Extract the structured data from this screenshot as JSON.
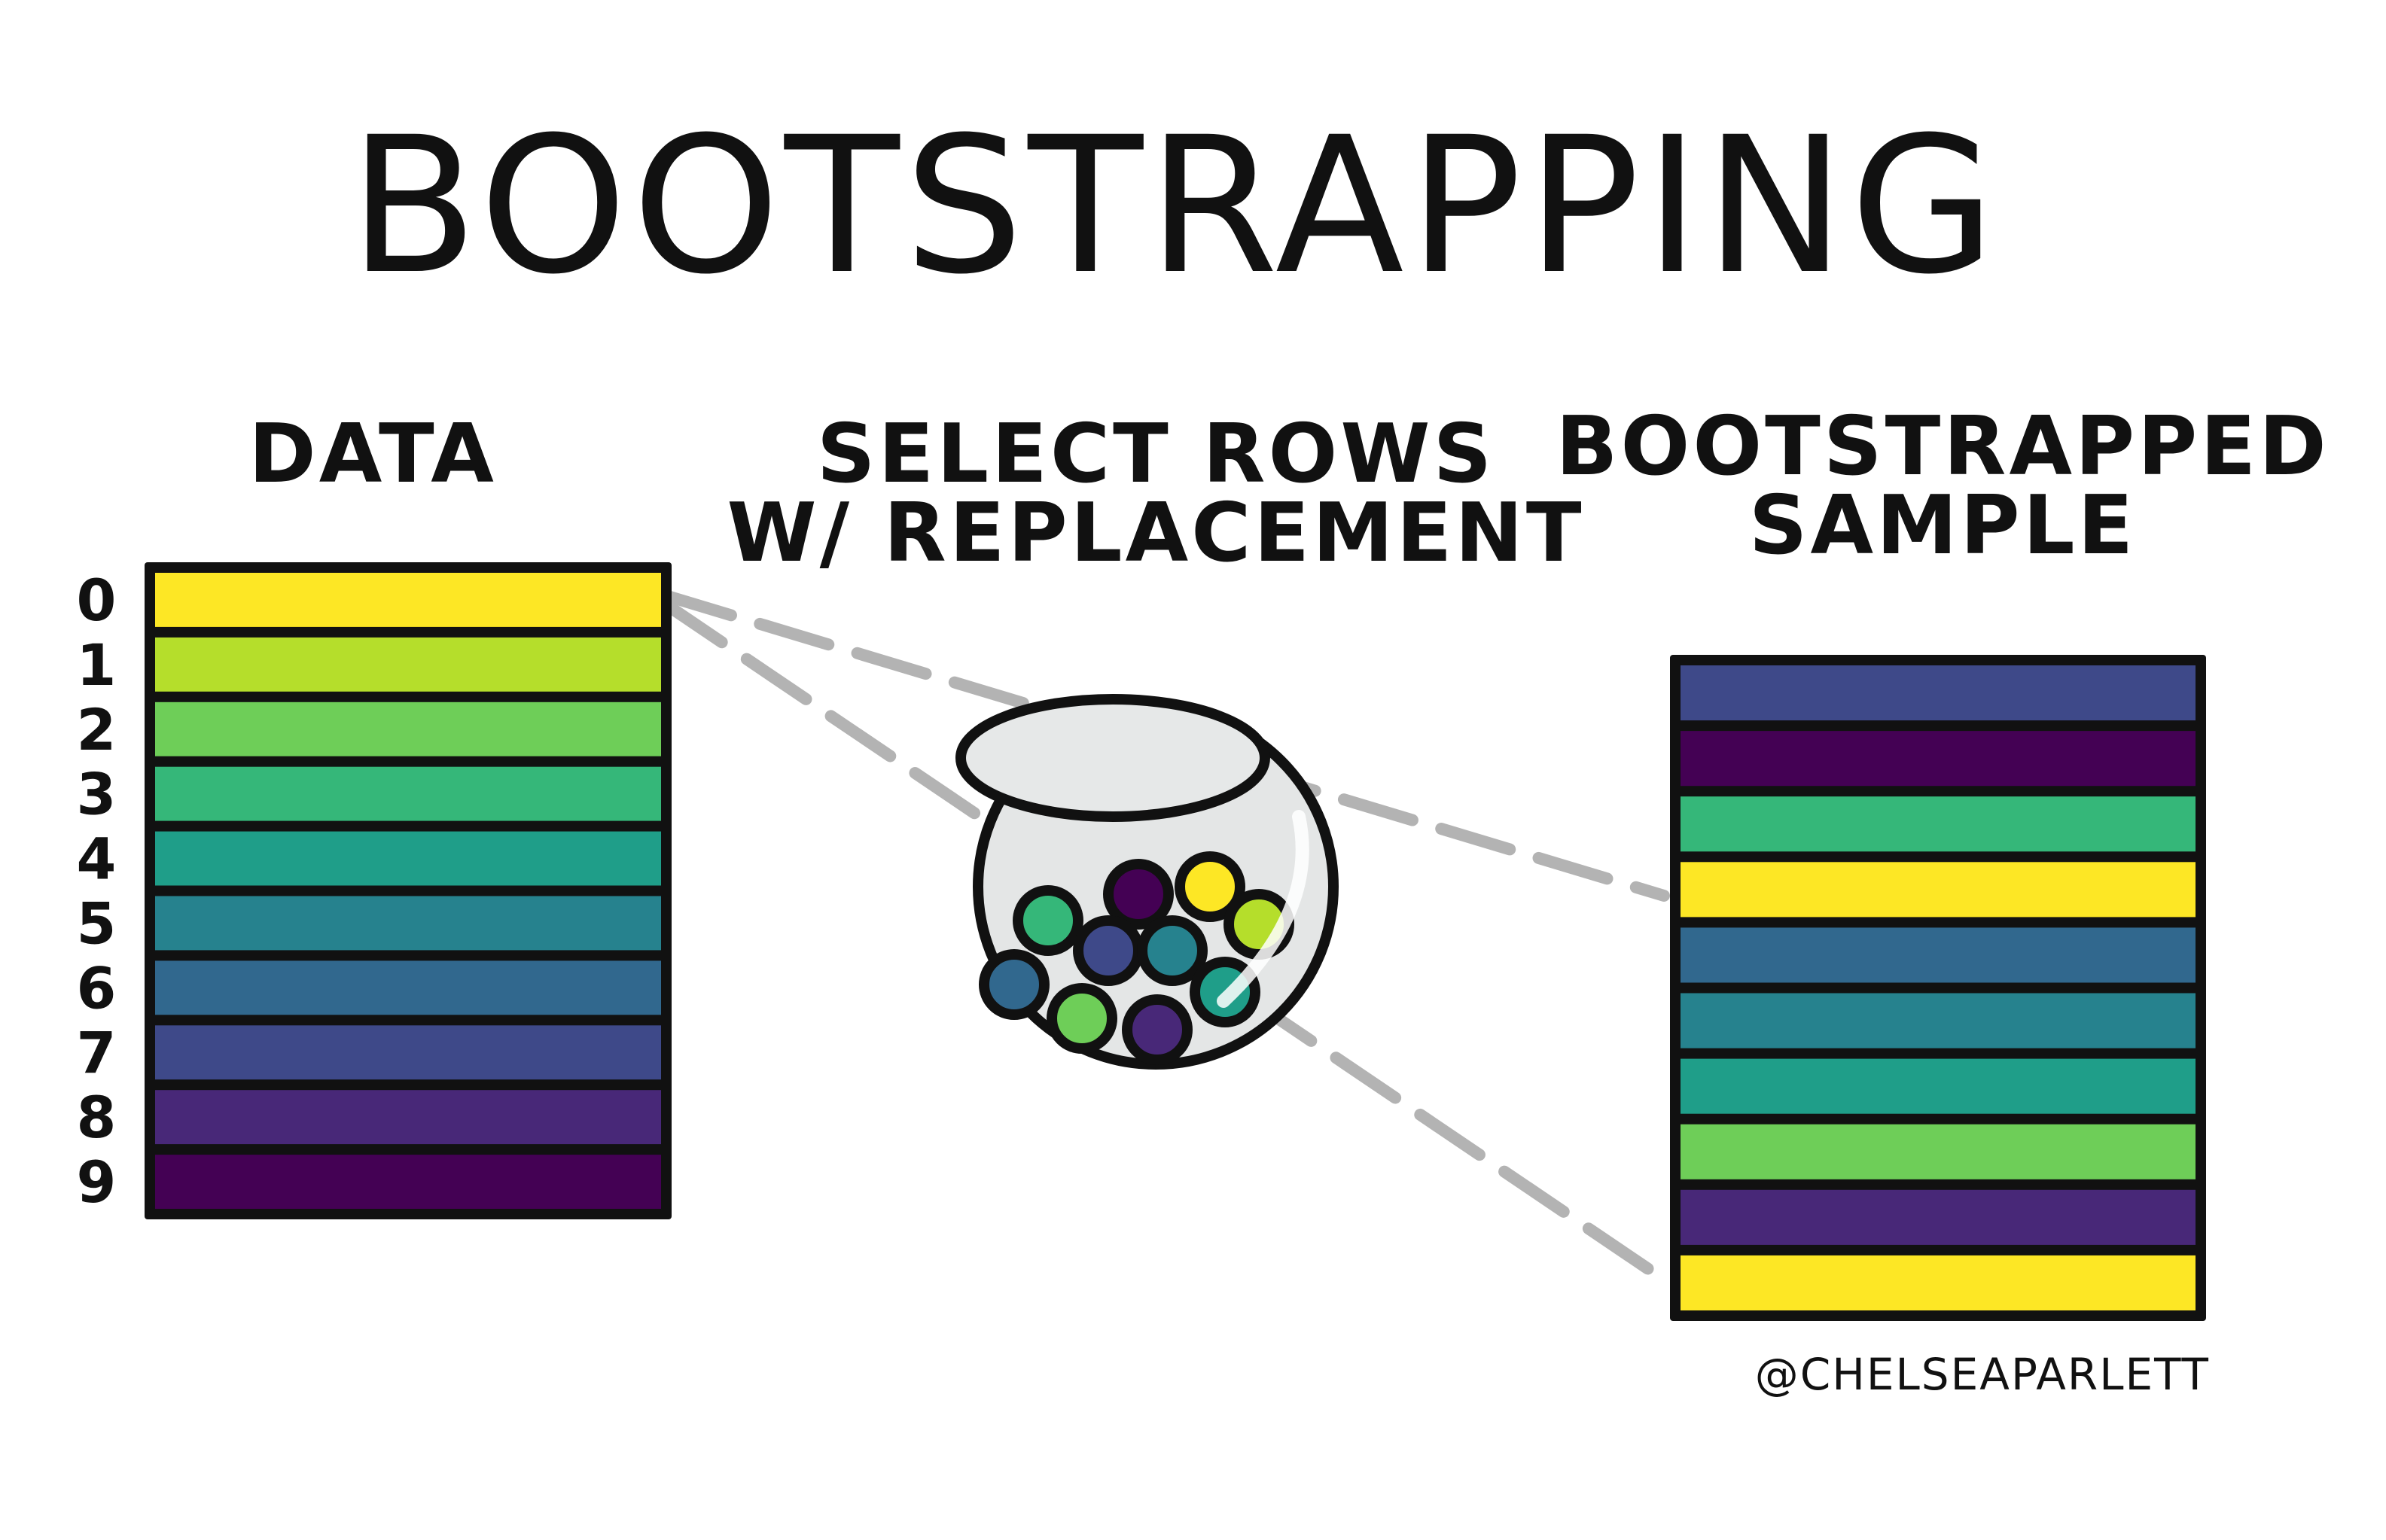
{
  "title": "BOOTSTRAPPING",
  "headings": {
    "data": "DATA",
    "select_line1": "SELECT ROWS",
    "select_line2": "W/ REPLACEMENT",
    "bootstrap_line1": "BOOTSTRAPPED",
    "bootstrap_line2": "SAMPLE"
  },
  "credit": "@CHELSEAPARLETT",
  "data_rows": [
    {
      "label": "0",
      "color": "#fde725"
    },
    {
      "label": "1",
      "color": "#b5de2b"
    },
    {
      "label": "2",
      "color": "#6ece58"
    },
    {
      "label": "3",
      "color": "#35b779"
    },
    {
      "label": "4",
      "color": "#1f9e89"
    },
    {
      "label": "5",
      "color": "#26828e"
    },
    {
      "label": "6",
      "color": "#31688e"
    },
    {
      "label": "7",
      "color": "#3e4989"
    },
    {
      "label": "8",
      "color": "#482878"
    },
    {
      "label": "9",
      "color": "#440154"
    }
  ],
  "sample_rows": [
    {
      "color": "#3e4989"
    },
    {
      "color": "#440154"
    },
    {
      "color": "#35b779"
    },
    {
      "color": "#fde725"
    },
    {
      "color": "#31688e"
    },
    {
      "color": "#26828e"
    },
    {
      "color": "#1f9e89"
    },
    {
      "color": "#6ece58"
    },
    {
      "color": "#482878"
    },
    {
      "color": "#fde725"
    }
  ],
  "bowl_balls": [
    {
      "color": "#440154"
    },
    {
      "color": "#fde725"
    },
    {
      "color": "#35b779"
    },
    {
      "color": "#3e4989"
    },
    {
      "color": "#26828e"
    },
    {
      "color": "#b5de2b"
    },
    {
      "color": "#31688e"
    },
    {
      "color": "#6ece58"
    },
    {
      "color": "#482878"
    },
    {
      "color": "#1f9e89"
    }
  ]
}
